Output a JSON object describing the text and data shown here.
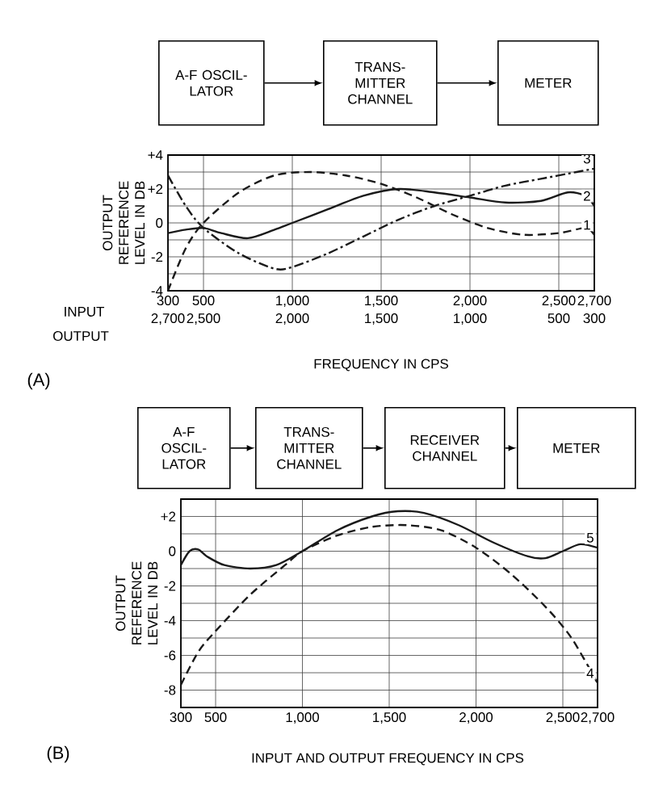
{
  "chart_data": [
    {
      "type": "line",
      "title": "(A)",
      "xlabel": "FREQUENCY IN CPS",
      "ylabel": "OUTPUT REFERENCE LEVEL IN DB",
      "annotations": [
        "A-F OSCIL-LATOR",
        "TRANS-MITTER CHANNEL",
        "METER",
        "INPUT",
        "OUTPUT"
      ],
      "xlim": [
        300,
        2700
      ],
      "xticks": [
        300,
        500,
        {
          "value": 1000,
          "label": "1,000"
        },
        {
          "value": 1500,
          "label": "1,500"
        },
        {
          "value": 2000,
          "label": "2,000"
        },
        {
          "value": 2500,
          "label": "2,500"
        },
        {
          "value": 2700,
          "label": "2,700"
        }
      ],
      "x2lim": [
        2700,
        300
      ],
      "x2ticks": [
        {
          "value": 2700,
          "label": "2,700"
        },
        {
          "value": 2500,
          "label": "2,500"
        },
        {
          "value": 2000,
          "label": "2,000"
        },
        {
          "value": 1500,
          "label": "1,500"
        },
        {
          "value": 1000,
          "label": "1,000"
        },
        500,
        300
      ],
      "ylim": [
        -4,
        4
      ],
      "yticks": [
        -4,
        {
          "value": -3,
          "label": null
        },
        -2,
        {
          "value": -1,
          "label": null
        },
        0,
        {
          "value": 1,
          "label": null
        },
        {
          "value": 2,
          "label": "+2"
        },
        {
          "value": 3,
          "label": null
        },
        {
          "value": 4,
          "label": "+4"
        }
      ],
      "grid": true,
      "legend": false,
      "marker": "none",
      "series": [
        {
          "name": "1",
          "color": "#1a1a1a",
          "line_style": "dashed",
          "x": [
            300,
            400,
            500,
            700,
            900,
            1100,
            1300,
            1500,
            1700,
            1900,
            2100,
            2300,
            2500,
            2650,
            2700
          ],
          "values": [
            -4,
            -1.5,
            0,
            1.8,
            2.8,
            3.0,
            2.8,
            2.3,
            1.5,
            0.5,
            -0.3,
            -0.7,
            -0.6,
            -0.3,
            -0.7
          ]
        },
        {
          "name": "2",
          "color": "#1a1a1a",
          "line_style": "solid",
          "x": [
            300,
            400,
            500,
            600,
            750,
            900,
            1000,
            1200,
            1400,
            1600,
            1800,
            2000,
            2200,
            2400,
            2550,
            2650,
            2700
          ],
          "values": [
            -0.6,
            -0.4,
            -0.3,
            -0.6,
            -0.9,
            -0.4,
            0,
            0.8,
            1.6,
            2.0,
            1.8,
            1.5,
            1.2,
            1.3,
            1.8,
            1.6,
            1.0
          ]
        },
        {
          "name": "3",
          "color": "#1a1a1a",
          "line_style": "dashdot",
          "x": [
            300,
            400,
            500,
            700,
            900,
            1000,
            1200,
            1400,
            1600,
            1800,
            2000,
            2200,
            2400,
            2600,
            2700
          ],
          "values": [
            2.8,
            1.0,
            -0.3,
            -1.8,
            -2.7,
            -2.6,
            -1.8,
            -0.8,
            0.2,
            1.0,
            1.6,
            2.2,
            2.6,
            3.0,
            3.2
          ]
        }
      ]
    },
    {
      "type": "line",
      "title": "(B)",
      "xlabel": "INPUT AND OUTPUT FREQUENCY IN CPS",
      "ylabel": "OUTPUT REFERENCE LEVEL IN DB",
      "annotations": [
        "A-F OSCIL-LATOR",
        "TRANS-MITTER CHANNEL",
        "RECEIVER CHANNEL",
        "METER"
      ],
      "xlim": [
        300,
        2700
      ],
      "xticks": [
        300,
        500,
        {
          "value": 1000,
          "label": "1,000"
        },
        {
          "value": 1500,
          "label": "1,500"
        },
        {
          "value": 2000,
          "label": "2,000"
        },
        {
          "value": 2500,
          "label": "2,500"
        },
        {
          "value": 2700,
          "label": "2,700"
        }
      ],
      "ylim": [
        -9,
        3
      ],
      "yticks": [
        -8,
        {
          "value": -7,
          "label": null
        },
        -6,
        {
          "value": -5,
          "label": null
        },
        -4,
        {
          "value": -3,
          "label": null
        },
        -2,
        {
          "value": -1,
          "label": null
        },
        0,
        {
          "value": 1,
          "label": null
        },
        {
          "value": 2,
          "label": "+2"
        }
      ],
      "grid": true,
      "legend": false,
      "marker": "none",
      "series": [
        {
          "name": "4",
          "color": "#1a1a1a",
          "line_style": "dashed",
          "x": [
            300,
            400,
            500,
            700,
            900,
            1000,
            1200,
            1400,
            1600,
            1800,
            2000,
            2200,
            2400,
            2550,
            2700
          ],
          "values": [
            -7.7,
            -5.8,
            -4.6,
            -2.5,
            -0.8,
            0,
            0.9,
            1.4,
            1.5,
            1.2,
            0.2,
            -1.3,
            -3.2,
            -5,
            -7.6
          ]
        },
        {
          "name": "5",
          "color": "#1a1a1a",
          "line_style": "solid",
          "x": [
            300,
            350,
            400,
            450,
            550,
            700,
            850,
            1000,
            1200,
            1400,
            1550,
            1700,
            1900,
            2100,
            2300,
            2400,
            2500,
            2600,
            2700
          ],
          "values": [
            -0.8,
            0,
            0.1,
            -0.3,
            -0.8,
            -1.0,
            -0.8,
            0,
            1.2,
            2.0,
            2.3,
            2.2,
            1.5,
            0.5,
            -0.3,
            -0.4,
            0,
            0.4,
            0.2
          ]
        }
      ]
    }
  ]
}
